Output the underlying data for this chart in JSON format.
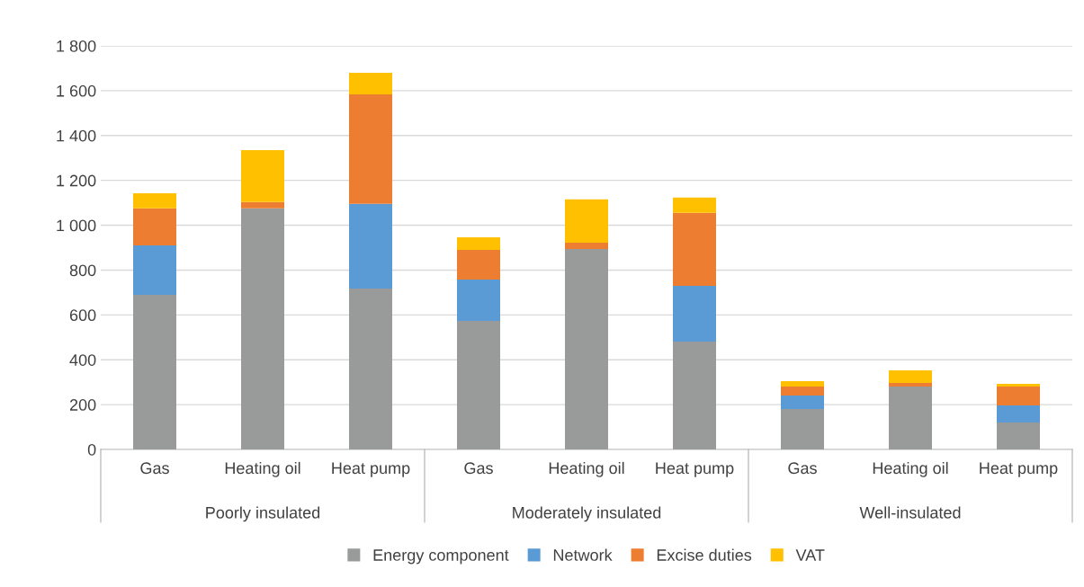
{
  "chart_data": {
    "type": "bar",
    "stacked": true,
    "categories": [
      "Gas",
      "Heating oil",
      "Heat pump",
      "Gas",
      "Heating oil",
      "Heat pump",
      "Gas",
      "Heating oil",
      "Heat pump"
    ],
    "annotations": [
      "Poorly insulated",
      "Moderately insulated",
      "Well-insulated"
    ],
    "series": [
      {
        "name": "Energy component",
        "color": "#999b9b",
        "values": [
          690,
          1075,
          718,
          573,
          894,
          481,
          180,
          281,
          120
        ]
      },
      {
        "name": "Network",
        "color": "#5b9bd5",
        "values": [
          220,
          0,
          377,
          185,
          0,
          249,
          61,
          0,
          76
        ]
      },
      {
        "name": "Excise duties",
        "color": "#ed7d31",
        "values": [
          165,
          28,
          489,
          132,
          28,
          325,
          40,
          16,
          85
        ]
      },
      {
        "name": "VAT",
        "color": "#ffc000",
        "values": [
          68,
          232,
          96,
          56,
          193,
          68,
          24,
          56,
          12
        ]
      }
    ],
    "ylim": [
      0,
      1800
    ],
    "yticks": [
      0,
      200,
      400,
      600,
      800,
      {
        "value": 1000,
        "label": "1 000"
      },
      {
        "value": 1200,
        "label": "1 200"
      },
      {
        "value": 1400,
        "label": "1 400"
      },
      {
        "value": 1600,
        "label": "1 600"
      },
      {
        "value": 1800,
        "label": "1 800"
      }
    ],
    "grid": "y",
    "legend": "bottom"
  }
}
